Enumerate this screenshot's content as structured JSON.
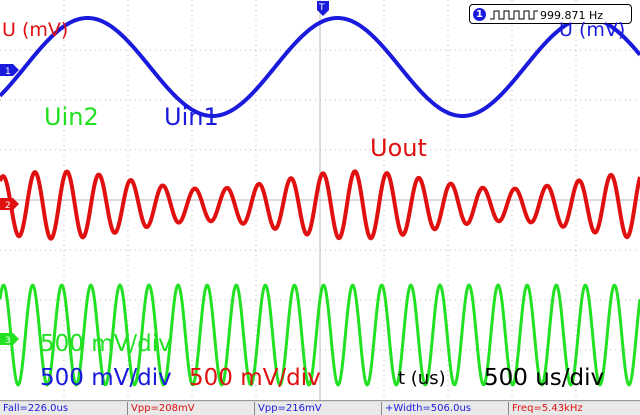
{
  "frequency_readout": {
    "value": "999.871 Hz",
    "channel": "1"
  },
  "labels": {
    "u_mv_left": "U (mV)",
    "u_mv_right": "U (mV)",
    "uin2": "Uin2",
    "uin1": "Uin1",
    "uout": "Uout",
    "green_scale": "500 mV/div",
    "blue_scale": "500 mV/div",
    "red_scale": "500 mV/div",
    "time_axis": "t (us)",
    "time_scale": "500 us/div"
  },
  "channel_markers": {
    "ch1": "1",
    "ch2": "2",
    "ch3": "3",
    "trigger": "T"
  },
  "measurements": [
    {
      "text": "Fall=226.0us",
      "color": "#1a1adc"
    },
    {
      "text": "Vpp=208mV",
      "color": "#e01010"
    },
    {
      "text": "Vpp=216mV",
      "color": "#1a1adc"
    },
    {
      "text": "+Width=506.0us",
      "color": "#1a1adc"
    },
    {
      "text": "Freq=5.43kHz",
      "color": "#e01010"
    }
  ],
  "colors": {
    "ch1": "#1a1adc",
    "ch2": "#e01010",
    "ch3": "#22e022",
    "grid": "#b8b8b8"
  },
  "waveforms": {
    "ch1": {
      "shape": "sine",
      "cycles_on_screen": 2
    },
    "ch2": {
      "shape": "sum of sines",
      "cycles_on_screen": 20
    },
    "ch3": {
      "shape": "sine",
      "cycles_on_screen": 22
    }
  }
}
